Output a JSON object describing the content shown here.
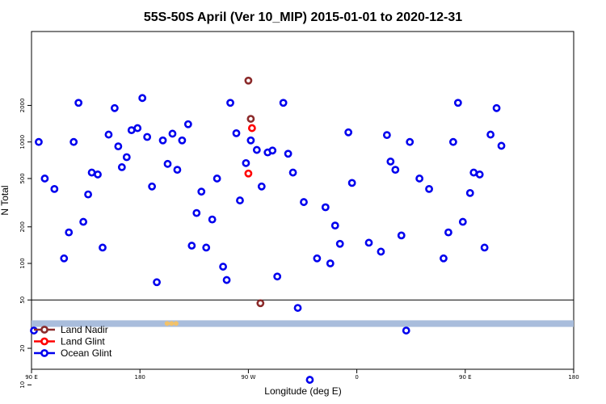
{
  "chart_data": {
    "type": "scatter",
    "title": "55S-50S April (Ver 10_MIP)   2015-01-01 to 2020-12-31",
    "xlabel": "Longitude (deg E)",
    "ylabel": "N Total",
    "x_ticks": [
      "90 E",
      "180",
      "90 W",
      "0",
      "90 E",
      "180"
    ],
    "y_ticks": [
      "10",
      "20",
      "50",
      "100",
      "200",
      "500",
      "1000",
      "2000"
    ],
    "y_scale": "log",
    "grid": false,
    "legend_position": "bottom-left",
    "reference_line_y": 50,
    "series": [
      {
        "name": "Land Nadir",
        "color": "#8b2a2a",
        "points": [
          [
            90,
            3200
          ],
          [
            92,
            1550
          ],
          [
            100,
            47
          ]
        ]
      },
      {
        "name": "Land Glint",
        "color": "#ff0000",
        "points": [
          [
            90,
            550
          ],
          [
            93,
            1300
          ]
        ]
      },
      {
        "name": "Ocean Glint",
        "color": "#0000ee",
        "points": [
          [
            -88,
            28
          ],
          [
            -84,
            1000
          ],
          [
            -79,
            500
          ],
          [
            -71,
            410
          ],
          [
            -63,
            110
          ],
          [
            -59,
            180
          ],
          [
            -55,
            1000
          ],
          [
            -51,
            2100
          ],
          [
            -47,
            220
          ],
          [
            -43,
            370
          ],
          [
            -40,
            560
          ],
          [
            -35,
            540
          ],
          [
            -31,
            135
          ],
          [
            -26,
            1150
          ],
          [
            -21,
            1900
          ],
          [
            -18,
            920
          ],
          [
            -15,
            620
          ],
          [
            -11,
            750
          ],
          [
            -7,
            1250
          ],
          [
            -2,
            1300
          ],
          [
            2,
            2300
          ],
          [
            6,
            1100
          ],
          [
            10,
            430
          ],
          [
            14,
            70
          ],
          [
            19,
            1030
          ],
          [
            23,
            660
          ],
          [
            27,
            1170
          ],
          [
            31,
            590
          ],
          [
            35,
            1030
          ],
          [
            40,
            1400
          ],
          [
            43,
            140
          ],
          [
            47,
            260
          ],
          [
            51,
            390
          ],
          [
            55,
            135
          ],
          [
            60,
            230
          ],
          [
            64,
            500
          ],
          [
            69,
            94
          ],
          [
            72,
            73
          ],
          [
            75,
            2100
          ],
          [
            80,
            1180
          ],
          [
            83,
            330
          ],
          [
            88,
            670
          ],
          [
            92,
            1030
          ],
          [
            97,
            860
          ],
          [
            101,
            430
          ],
          [
            106,
            820
          ],
          [
            110,
            850
          ],
          [
            114,
            78
          ],
          [
            119,
            2100
          ],
          [
            123,
            800
          ],
          [
            127,
            560
          ],
          [
            131,
            43
          ],
          [
            136,
            320
          ],
          [
            141,
            11
          ],
          [
            147,
            110
          ],
          [
            154,
            290
          ],
          [
            158,
            100
          ],
          [
            162,
            205
          ],
          [
            166,
            145
          ],
          [
            173,
            1200
          ],
          [
            176,
            460
          ],
          [
            190,
            148
          ],
          [
            200,
            125
          ],
          [
            205,
            1140
          ],
          [
            208,
            690
          ],
          [
            212,
            590
          ],
          [
            217,
            170
          ],
          [
            221,
            28
          ],
          [
            224,
            1000
          ],
          [
            232,
            500
          ],
          [
            240,
            410
          ],
          [
            252,
            110
          ],
          [
            256,
            180
          ],
          [
            260,
            1000
          ],
          [
            264,
            2100
          ],
          [
            268,
            220
          ],
          [
            274,
            380
          ],
          [
            277,
            560
          ],
          [
            282,
            540
          ],
          [
            286,
            135
          ],
          [
            291,
            1150
          ],
          [
            296,
            1900
          ],
          [
            300,
            930
          ]
        ]
      }
    ],
    "data_gap_band": {
      "y_min": 30,
      "y_max": 34,
      "color": "#a9bddc"
    },
    "land_marks_near_band": {
      "color": "#f2c26b",
      "x": [
        90,
        93,
        96
      ]
    }
  }
}
